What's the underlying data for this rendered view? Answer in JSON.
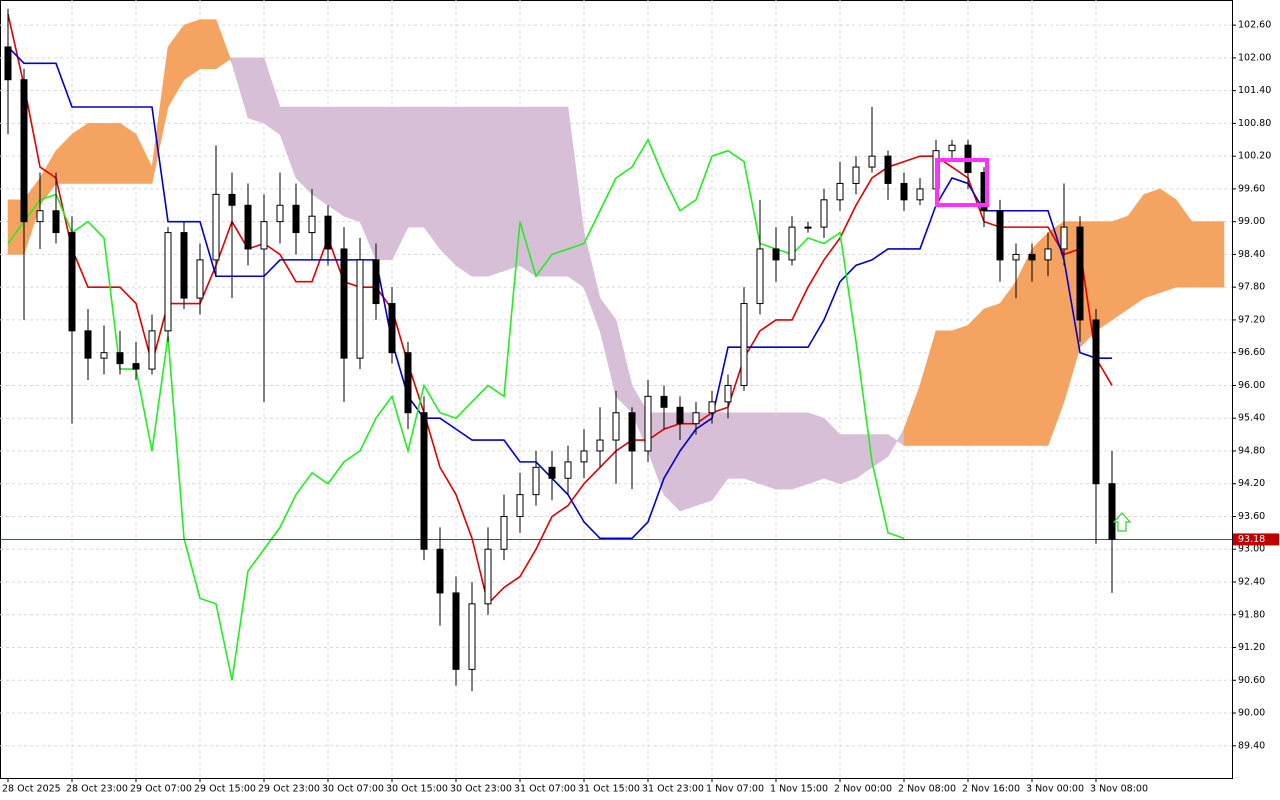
{
  "chart_data": {
    "type": "candlestick",
    "categories": [
      "28 Oct 2025",
      null,
      null,
      null,
      "28 Oct 23:00",
      null,
      null,
      null,
      "29 Oct 07:00",
      null,
      null,
      null,
      "29 Oct 15:00",
      null,
      null,
      null,
      "29 Oct 23:00",
      null,
      null,
      null,
      "30 Oct 07:00",
      null,
      null,
      null,
      "30 Oct 15:00",
      null,
      null,
      null,
      "30 Oct 23:00",
      null,
      null,
      null,
      "31 Oct 07:00",
      null,
      null,
      null,
      "31 Oct 15:00",
      null,
      null,
      null,
      "31 Oct 23:00",
      null,
      null,
      null,
      "1 Nov 07:00",
      null,
      null,
      null,
      "1 Nov 15:00",
      null,
      null,
      null,
      "2 Nov 00:00",
      null,
      null,
      null,
      "2 Nov 08:00",
      null,
      null,
      null,
      "2 Nov 16:00",
      null,
      null,
      null,
      "3 Nov 00:00",
      null,
      null,
      null,
      "3 Nov 08:00",
      null,
      null,
      null,
      null,
      null,
      null,
      null,
      null
    ],
    "open": [
      102.2,
      101.6,
      99.0,
      99.2,
      98.8,
      97.0,
      96.5,
      96.6,
      96.4,
      96.3,
      97.0,
      98.8,
      97.6,
      98.3,
      99.5,
      99.3,
      98.5,
      99.0,
      99.3,
      98.8,
      99.1,
      98.5,
      96.5,
      98.3,
      97.5,
      96.6,
      95.5,
      93.0,
      92.2,
      90.8,
      92.0,
      93.0,
      93.6,
      94.0,
      94.5,
      94.3,
      94.6,
      94.8,
      95.0,
      95.5,
      94.8,
      95.8,
      95.6,
      95.3,
      95.5,
      95.7,
      96.0,
      97.5,
      98.5,
      98.3,
      98.9,
      98.9,
      99.4,
      99.7,
      100.0,
      100.2,
      99.7,
      99.4,
      99.6,
      100.3,
      100.4,
      99.9,
      99.2,
      98.3,
      98.4,
      98.3,
      98.5,
      98.9,
      97.2,
      94.2,
      null,
      null,
      null,
      null,
      null,
      null,
      null
    ],
    "high": [
      102.9,
      101.8,
      99.9,
      99.9,
      99.1,
      97.4,
      97.1,
      97.0,
      96.8,
      97.3,
      98.9,
      99.0,
      98.6,
      100.4,
      99.9,
      99.7,
      99.5,
      99.9,
      99.7,
      99.6,
      99.3,
      98.9,
      98.7,
      98.6,
      97.8,
      96.8,
      95.8,
      93.4,
      92.5,
      92.4,
      93.4,
      94.0,
      94.4,
      94.8,
      94.8,
      94.9,
      95.2,
      95.6,
      95.9,
      95.6,
      96.1,
      96.0,
      95.8,
      95.7,
      95.9,
      96.2,
      97.8,
      99.4,
      98.9,
      99.1,
      99.0,
      99.6,
      100.1,
      100.2,
      101.1,
      100.3,
      99.9,
      99.8,
      100.5,
      100.5,
      100.5,
      100.0,
      99.4,
      98.6,
      98.6,
      98.8,
      99.7,
      99.1,
      97.4,
      94.8,
      null,
      null,
      null,
      null,
      null,
      null,
      null
    ],
    "low": [
      100.6,
      97.2,
      98.5,
      98.6,
      95.3,
      96.1,
      96.2,
      96.2,
      96.1,
      96.2,
      96.8,
      97.4,
      97.3,
      98.0,
      97.6,
      98.2,
      95.7,
      98.6,
      98.4,
      98.3,
      98.2,
      95.7,
      96.3,
      97.2,
      96.4,
      95.2,
      92.8,
      91.6,
      90.5,
      90.4,
      91.8,
      92.8,
      93.3,
      93.8,
      93.9,
      94.0,
      94.3,
      94.5,
      94.2,
      94.1,
      94.6,
      95.2,
      95.0,
      95.1,
      95.3,
      95.4,
      95.9,
      97.3,
      97.9,
      98.2,
      98.8,
      98.7,
      99.2,
      99.5,
      99.9,
      99.4,
      99.2,
      99.3,
      99.5,
      100.1,
      99.6,
      98.9,
      97.9,
      97.6,
      97.9,
      98.0,
      98.2,
      96.8,
      93.1,
      92.2,
      null,
      null,
      null,
      null,
      null,
      null,
      null
    ],
    "close": [
      101.6,
      99.0,
      99.2,
      98.8,
      97.0,
      96.5,
      96.6,
      96.4,
      96.3,
      97.0,
      98.8,
      97.6,
      98.3,
      99.5,
      99.3,
      98.5,
      99.0,
      99.3,
      98.8,
      99.1,
      98.5,
      96.5,
      98.3,
      97.5,
      96.6,
      95.5,
      93.0,
      92.2,
      90.8,
      92.0,
      93.0,
      93.6,
      94.0,
      94.5,
      94.3,
      94.6,
      94.8,
      95.0,
      95.5,
      94.8,
      95.8,
      95.6,
      95.3,
      95.5,
      95.7,
      96.0,
      97.5,
      98.5,
      98.3,
      98.9,
      98.9,
      99.4,
      99.7,
      100.0,
      100.2,
      99.7,
      99.4,
      99.6,
      100.3,
      100.4,
      99.9,
      99.2,
      98.3,
      98.4,
      98.3,
      98.5,
      98.9,
      97.2,
      94.2,
      93.18,
      null,
      null,
      null,
      null,
      null,
      null,
      null
    ],
    "up_color": "#ffffff",
    "down_color": "#000000",
    "lines": [
      {
        "color": "#e00000",
        "values": [
          102.8,
          101.5,
          100.0,
          99.8,
          98.5,
          97.8,
          97.8,
          97.8,
          97.5,
          96.4,
          97.5,
          97.5,
          97.5,
          98.2,
          99.0,
          98.5,
          98.6,
          98.4,
          97.9,
          97.9,
          98.7,
          97.9,
          97.8,
          97.8,
          97.4,
          96.4,
          95.5,
          94.5,
          94.0,
          93.2,
          92.0,
          92.3,
          92.5,
          93.0,
          93.6,
          93.8,
          94.2,
          94.5,
          94.8,
          95.0,
          95.0,
          95.2,
          95.3,
          95.3,
          95.5,
          95.6,
          96.5,
          97.0,
          97.2,
          97.2,
          97.8,
          98.3,
          98.7,
          99.3,
          99.8,
          100.0,
          100.1,
          100.2,
          100.2,
          100.0,
          99.8,
          99.0,
          98.9,
          98.9,
          98.9,
          98.9,
          98.4,
          98.5,
          96.5,
          96.0,
          null,
          null,
          null,
          null,
          null,
          null,
          null
        ]
      },
      {
        "color": "#0000cc",
        "values": [
          102.2,
          101.9,
          101.9,
          101.9,
          101.1,
          101.1,
          101.1,
          101.1,
          101.1,
          101.1,
          99.0,
          99.0,
          99.0,
          98.0,
          98.0,
          98.0,
          98.0,
          98.3,
          98.3,
          98.3,
          98.3,
          98.3,
          98.3,
          98.3,
          96.8,
          95.8,
          95.4,
          95.4,
          95.2,
          95.0,
          95.0,
          95.0,
          94.6,
          94.6,
          94.3,
          94.0,
          93.5,
          93.2,
          93.2,
          93.2,
          93.5,
          94.3,
          94.8,
          95.2,
          95.4,
          96.7,
          96.7,
          96.7,
          96.7,
          96.7,
          96.7,
          97.2,
          97.9,
          98.2,
          98.3,
          98.5,
          98.5,
          98.5,
          99.3,
          99.8,
          99.7,
          99.2,
          99.2,
          99.2,
          99.2,
          99.2,
          98.3,
          96.6,
          96.5,
          96.5,
          null,
          null,
          null,
          null,
          null,
          null,
          null
        ]
      },
      {
        "color": "#22ee22",
        "values": [
          98.6,
          99.0,
          99.4,
          99.5,
          98.8,
          99.0,
          98.7,
          96.3,
          96.3,
          94.8,
          96.9,
          93.2,
          92.1,
          92.0,
          90.6,
          92.6,
          93.0,
          93.4,
          94.0,
          94.4,
          94.2,
          94.6,
          94.8,
          95.4,
          95.8,
          94.8,
          96.0,
          95.5,
          95.4,
          95.7,
          96.0,
          95.8,
          99.0,
          98.0,
          98.4,
          98.5,
          98.6,
          99.2,
          99.8,
          100.0,
          100.5,
          99.8,
          99.2,
          99.4,
          100.2,
          100.3,
          100.1,
          98.6,
          98.5,
          98.4,
          98.7,
          98.6,
          98.8,
          96.8,
          94.6,
          93.3,
          93.2,
          null,
          null,
          null,
          null,
          null,
          null,
          null,
          null,
          null,
          null,
          null,
          null,
          null,
          null,
          null,
          null,
          null,
          null,
          null,
          null
        ]
      }
    ],
    "cloud": {
      "up_color": "#f4a460",
      "down_color": "#d8bfd8",
      "span_a": [
        99.4,
        99.4,
        99.8,
        100.3,
        100.6,
        100.8,
        100.8,
        100.8,
        100.6,
        100.0,
        102.2,
        102.6,
        102.7,
        102.7,
        101.9,
        100.9,
        100.8,
        100.6,
        99.8,
        99.5,
        99.3,
        99.1,
        99.0,
        98.3,
        98.3,
        98.9,
        98.9,
        98.5,
        98.2,
        98.0,
        98.0,
        98.1,
        98.2,
        98.0,
        98.0,
        98.0,
        97.8,
        97.0,
        95.8,
        95.5,
        94.8,
        94.0,
        93.7,
        93.8,
        93.9,
        94.3,
        94.3,
        94.2,
        94.1,
        94.1,
        94.2,
        94.3,
        94.2,
        94.3,
        94.5,
        94.7,
        95.2,
        96.0,
        97.0,
        97.0,
        97.1,
        97.4,
        97.5,
        97.9,
        98.5,
        98.8,
        99.0,
        99.0,
        99.0,
        99.0,
        99.1,
        99.5,
        99.6,
        99.4,
        99.0,
        99.0,
        99.0
      ],
      "span_b": [
        98.4,
        98.4,
        99.3,
        99.7,
        99.7,
        99.7,
        99.7,
        99.7,
        99.7,
        99.7,
        101.1,
        101.6,
        101.8,
        101.8,
        102.0,
        102.0,
        102.0,
        101.1,
        101.1,
        101.1,
        101.1,
        101.1,
        101.1,
        101.1,
        101.1,
        101.1,
        101.1,
        101.1,
        101.1,
        101.1,
        101.1,
        101.1,
        101.1,
        101.1,
        101.1,
        101.1,
        98.8,
        97.6,
        97.2,
        96.0,
        95.5,
        95.5,
        95.5,
        95.5,
        95.5,
        95.5,
        95.5,
        95.5,
        95.5,
        95.5,
        95.5,
        95.4,
        95.1,
        95.1,
        95.1,
        95.1,
        94.9,
        94.9,
        94.9,
        94.9,
        94.9,
        94.9,
        94.9,
        94.9,
        94.9,
        94.9,
        95.7,
        96.7,
        97.0,
        97.2,
        97.4,
        97.6,
        97.7,
        97.8,
        97.8,
        97.8,
        97.8
      ]
    },
    "price_line": 93.18,
    "price_line_color": "#c00000",
    "ylim": [
      88.81,
      103.06
    ],
    "yticks": [
      {
        "value": 102.6,
        "label": "102.60"
      },
      {
        "value": 102.0,
        "label": "102.00"
      },
      {
        "value": 101.4,
        "label": "101.40"
      },
      {
        "value": 100.8,
        "label": "100.80"
      },
      {
        "value": 100.2,
        "label": "100.20"
      },
      {
        "value": 99.6,
        "label": "99.60"
      },
      {
        "value": 99.0,
        "label": "99.00"
      },
      {
        "value": 98.4,
        "label": "98.40"
      },
      {
        "value": 97.8,
        "label": "97.80"
      },
      {
        "value": 97.2,
        "label": "97.20"
      },
      {
        "value": 96.6,
        "label": "96.60"
      },
      {
        "value": 96.0,
        "label": "96.00"
      },
      {
        "value": 95.4,
        "label": "95.40"
      },
      {
        "value": 94.8,
        "label": "94.80"
      },
      {
        "value": 94.2,
        "label": "94.20"
      },
      {
        "value": 93.6,
        "label": "93.60"
      },
      {
        "value": 93.0,
        "label": "93.00"
      },
      {
        "value": 92.4,
        "label": "92.40"
      },
      {
        "value": 91.8,
        "label": "91.80"
      },
      {
        "value": 91.2,
        "label": "91.20"
      },
      {
        "value": 90.6,
        "label": "90.60"
      },
      {
        "value": 90.0,
        "label": "90.00"
      },
      {
        "value": 89.4,
        "label": "89.40"
      }
    ],
    "grid": true
  }
}
